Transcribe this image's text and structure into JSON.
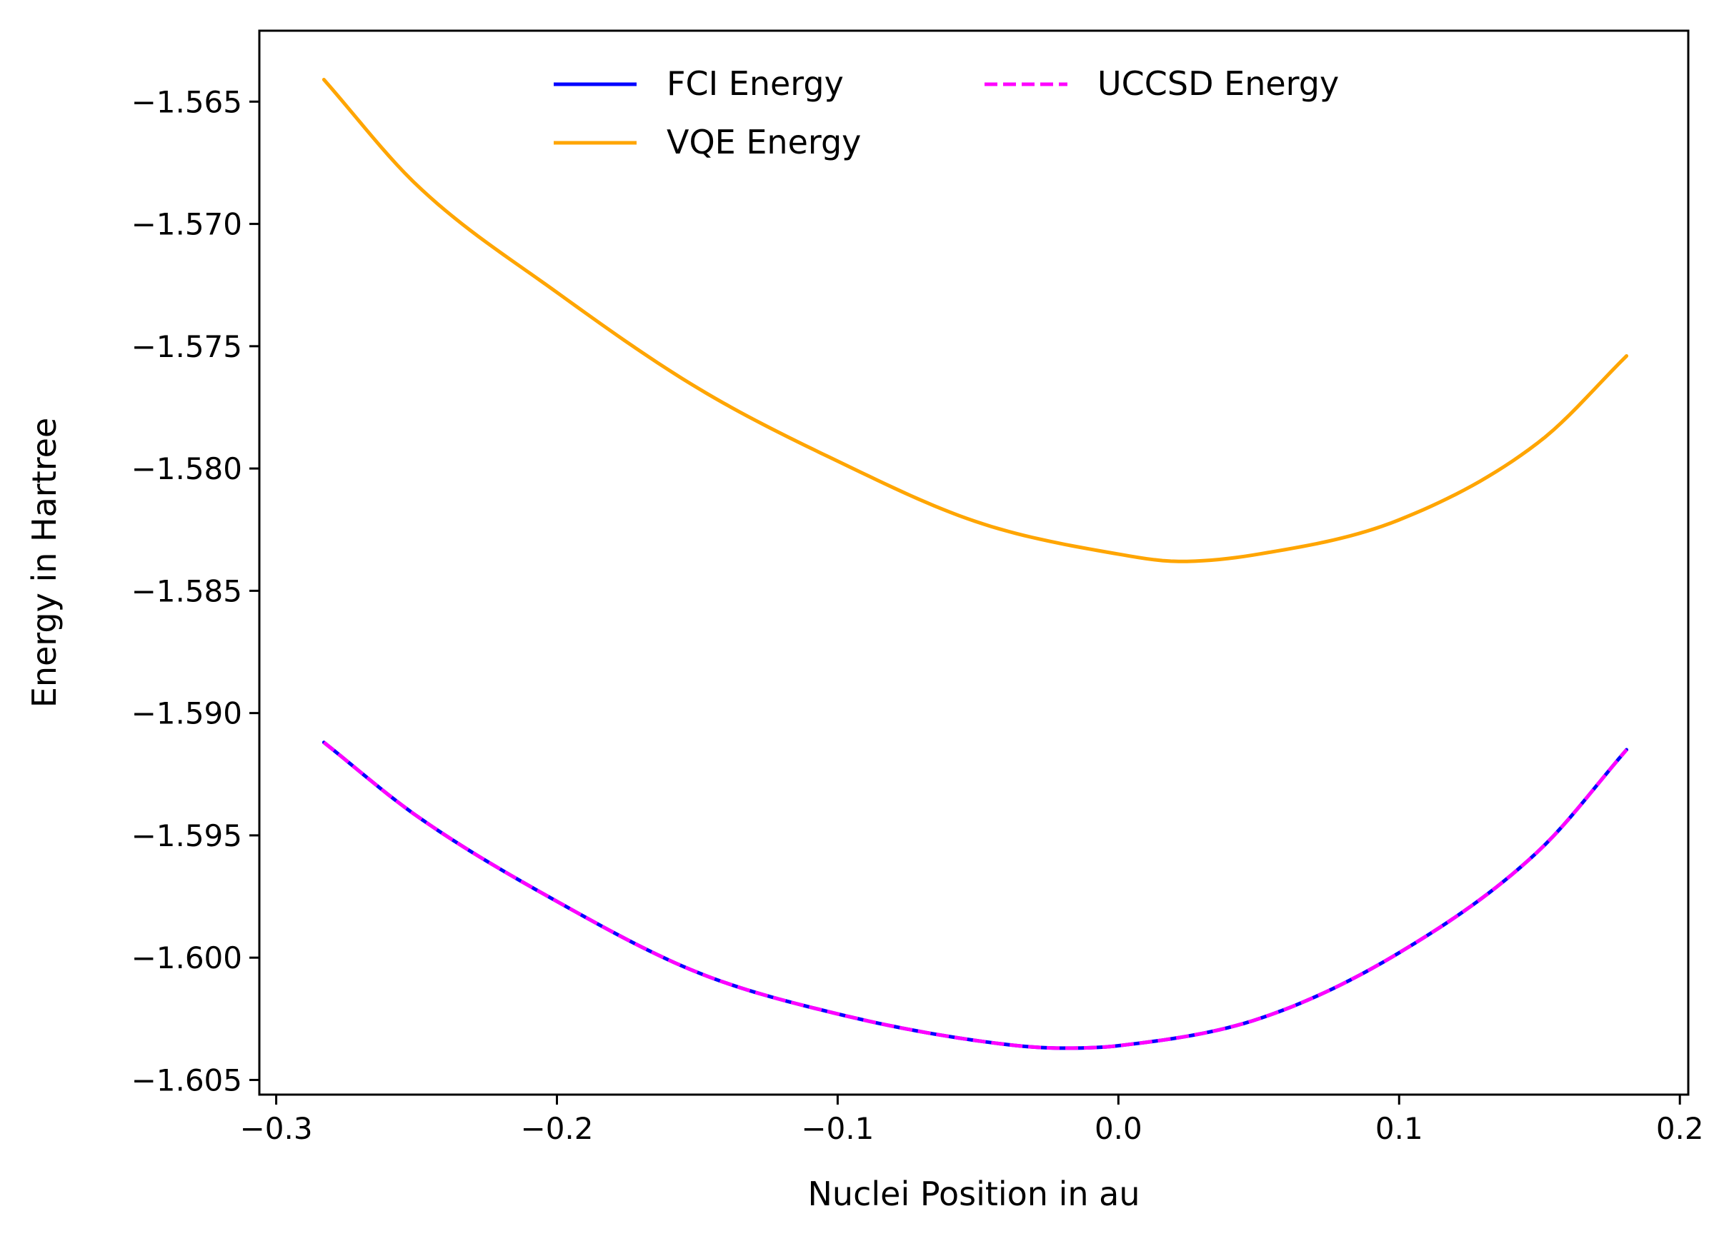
{
  "chart_data": {
    "type": "line",
    "title": "",
    "xlabel": "Nuclei Position in au",
    "ylabel": "Energy in Hartree",
    "xlim": [
      -0.306,
      0.203
    ],
    "ylim": [
      -1.6056,
      -1.5621
    ],
    "xticks": [
      -0.3,
      -0.2,
      -0.1,
      0.0,
      0.1,
      0.2
    ],
    "xtick_labels": [
      "−0.3",
      "−0.2",
      "−0.1",
      "0.0",
      "0.1",
      "0.2"
    ],
    "yticks": [
      -1.565,
      -1.57,
      -1.575,
      -1.58,
      -1.585,
      -1.59,
      -1.595,
      -1.6,
      -1.605
    ],
    "ytick_labels": [
      "−1.565",
      "−1.570",
      "−1.575",
      "−1.580",
      "−1.585",
      "−1.590",
      "−1.595",
      "−1.600",
      "−1.605"
    ],
    "grid": false,
    "legend": {
      "placement": "top-center",
      "columns": 2,
      "entries": [
        "FCI Energy",
        "VQE Energy",
        "UCCSD Energy"
      ]
    },
    "series": [
      {
        "name": "FCI Energy",
        "color": "#0000ff",
        "style": "solid",
        "x": [
          -0.283,
          -0.25,
          -0.2,
          -0.15,
          -0.1,
          -0.05,
          -0.02,
          0.0,
          0.05,
          0.1,
          0.15,
          0.181
        ],
        "y": [
          -1.5912,
          -1.5942,
          -1.5977,
          -1.6006,
          -1.6023,
          -1.6034,
          -1.6037,
          -1.6036,
          -1.6025,
          -1.5998,
          -1.5956,
          -1.5915
        ]
      },
      {
        "name": "VQE Energy",
        "color": "#ffa500",
        "style": "solid",
        "x": [
          -0.283,
          -0.25,
          -0.2,
          -0.15,
          -0.1,
          -0.05,
          0.0,
          0.022,
          0.05,
          0.1,
          0.15,
          0.181
        ],
        "y": [
          -1.5641,
          -1.5684,
          -1.5728,
          -1.5767,
          -1.5797,
          -1.5822,
          -1.5835,
          -1.5838,
          -1.5835,
          -1.5821,
          -1.5789,
          -1.5754
        ]
      },
      {
        "name": "UCCSD Energy",
        "color": "#ff00ff",
        "style": "dashed",
        "x": [
          -0.283,
          -0.25,
          -0.2,
          -0.15,
          -0.1,
          -0.05,
          -0.02,
          0.0,
          0.05,
          0.1,
          0.15,
          0.181
        ],
        "y": [
          -1.5912,
          -1.5942,
          -1.5977,
          -1.6006,
          -1.6023,
          -1.6034,
          -1.6037,
          -1.6036,
          -1.6025,
          -1.5998,
          -1.5956,
          -1.5915
        ]
      }
    ]
  }
}
